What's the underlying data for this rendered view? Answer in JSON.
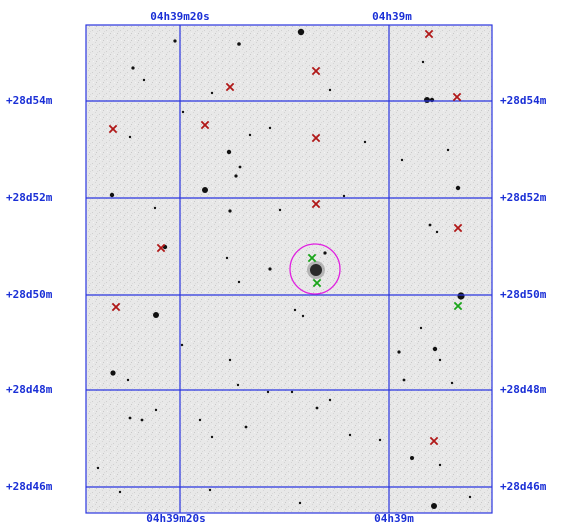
{
  "ra_labels_top": [
    "04h39m20s",
    "04h39m"
  ],
  "ra_labels_bottom": [
    "04h39m20s",
    "04h39m"
  ],
  "dec_labels_left": [
    "+28d54m",
    "+28d52m",
    "+28d50m",
    "+28d48m",
    "+28d46m"
  ],
  "dec_labels_right": [
    "+28d54m",
    "+28d52m",
    "+28d50m",
    "+28d48m",
    "+28d46m"
  ],
  "colors": {
    "grid": "#2a35e0",
    "label": "#1a2fd6",
    "marker_red": "#b01818",
    "marker_green": "#1aa51a",
    "target_circle": "#e020e0",
    "sky": "#e6e6e6"
  }
}
